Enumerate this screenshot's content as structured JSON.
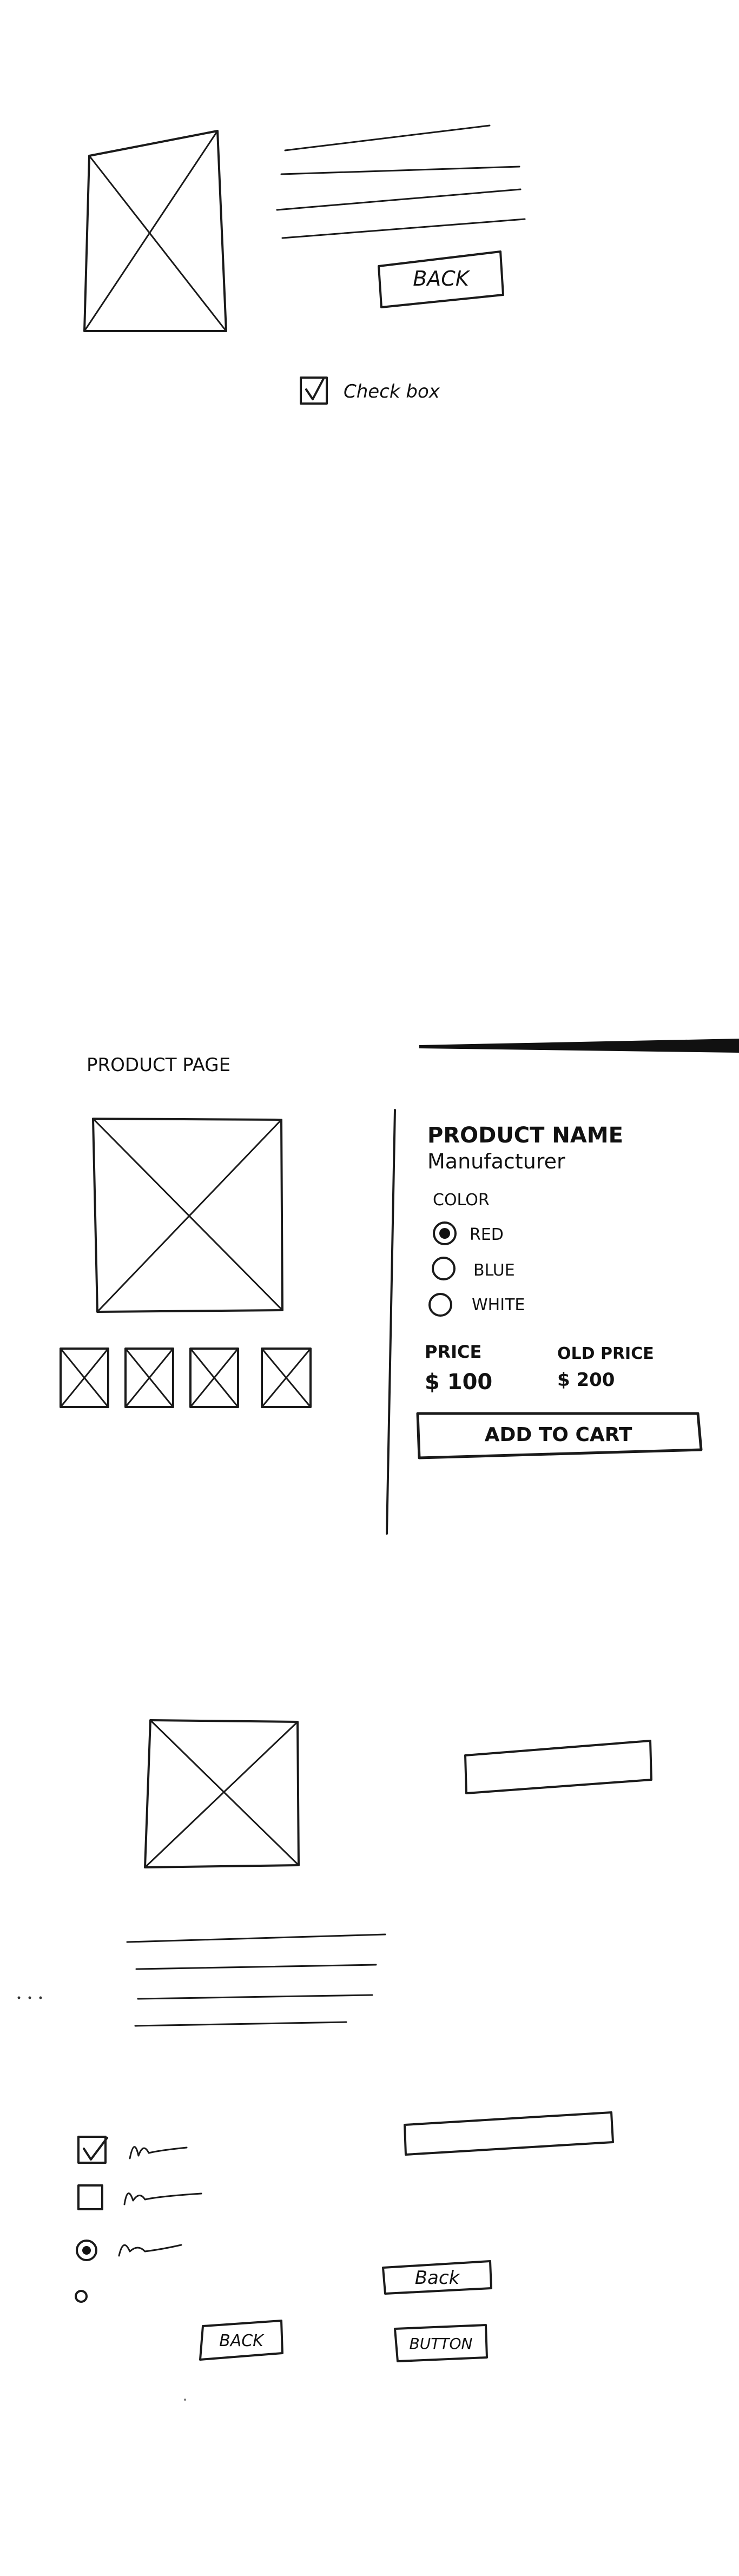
{
  "colors": {
    "paper": "#ffffff",
    "ink": "#1a1a1a"
  },
  "sketch1": {
    "back_button": "BACK",
    "checkbox_label": "Check box",
    "checkbox_checked": true
  },
  "sketch2": {
    "page_title": "PRODUCT PAGE",
    "product_name": "PRODUCT NAME",
    "manufacturer": "Manufacturer",
    "color_label": "COLOR",
    "color_options": [
      {
        "label": "RED",
        "selected": true
      },
      {
        "label": "BLUE",
        "selected": false
      },
      {
        "label": "WHITE",
        "selected": false
      }
    ],
    "price_label": "PRICE",
    "price_value": "$ 100",
    "old_price_label": "OLD PRICE",
    "old_price_value": "$ 200",
    "add_to_cart": "ADD TO CART",
    "thumbnail_count": 4
  },
  "sketch3": {
    "back_button_right": "Back",
    "back_button_left": "BACK",
    "generic_button": "BUTTON",
    "checkbox_states": [
      true,
      false
    ],
    "radio_states": [
      true,
      false
    ]
  }
}
